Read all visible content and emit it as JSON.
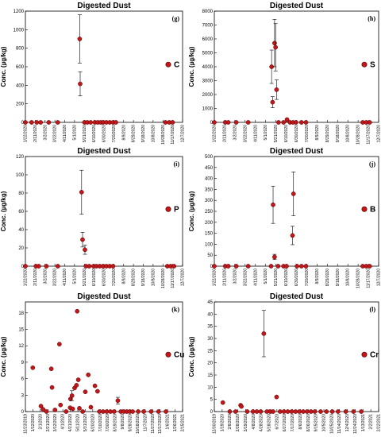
{
  "chart_data": [
    {
      "type": "scatter",
      "title": "Digested Dust",
      "panel_label": "(g)",
      "ylabel": "Conc. (µg/kg)",
      "ylim": [
        0,
        1200
      ],
      "yticks": [
        "0",
        "200",
        "400",
        "600",
        "800",
        "1000",
        "1200"
      ],
      "xticks": [
        "1/22/2020",
        "2/11/2020",
        "3/2/2020",
        "3/22/2020",
        "4/11/2020",
        "5/1/2020",
        "5/21/2020",
        "6/10/2020",
        "6/30/2020",
        "7/20/2020",
        "8/9/2020",
        "8/29/2020",
        "9/18/2020",
        "10/8/2020",
        "10/28/2020",
        "11/17/2020",
        "12/7/2020"
      ],
      "xrange_days": [
        0,
        330
      ],
      "legend": "C",
      "points": [
        {
          "x": 0,
          "y": 0
        },
        {
          "x": 13,
          "y": 0
        },
        {
          "x": 24,
          "y": 0
        },
        {
          "x": 32,
          "y": 0
        },
        {
          "x": 49,
          "y": 0
        },
        {
          "x": 68,
          "y": 0
        },
        {
          "x": 114,
          "y": 900,
          "err": 260
        },
        {
          "x": 115,
          "y": 415,
          "err": 130
        },
        {
          "x": 124,
          "y": 0
        },
        {
          "x": 130,
          "y": 0
        },
        {
          "x": 137,
          "y": 0
        },
        {
          "x": 146,
          "y": 0
        },
        {
          "x": 152,
          "y": 0
        },
        {
          "x": 158,
          "y": 0
        },
        {
          "x": 163,
          "y": 0
        },
        {
          "x": 170,
          "y": 0
        },
        {
          "x": 177,
          "y": 0
        },
        {
          "x": 184,
          "y": 0
        },
        {
          "x": 190,
          "y": 0
        },
        {
          "x": 294,
          "y": 0
        },
        {
          "x": 302,
          "y": 0
        },
        {
          "x": 309,
          "y": 0
        }
      ]
    },
    {
      "type": "scatter",
      "title": "Digested Dust",
      "panel_label": "(h)",
      "ylabel": "Conc. (µg/kg)",
      "ylim": [
        0,
        8000
      ],
      "yticks": [
        "0",
        "1000",
        "2000",
        "3000",
        "4000",
        "5000",
        "6000",
        "7000",
        "8000"
      ],
      "xticks": [
        "1/22/2020",
        "2/11/2020",
        "3/2/2020",
        "3/22/2020",
        "4/11/2020",
        "5/1/2020",
        "5/21/2020",
        "6/10/2020",
        "6/30/2020",
        "7/20/2020",
        "8/9/2020",
        "8/29/2020",
        "9/18/2020",
        "10/8/2020",
        "10/28/2020",
        "11/17/2020",
        "12/7/2020"
      ],
      "xrange_days": [
        0,
        330
      ],
      "legend": "S",
      "points": [
        {
          "x": 0,
          "y": 0
        },
        {
          "x": 22,
          "y": 0
        },
        {
          "x": 28,
          "y": 0
        },
        {
          "x": 44,
          "y": 0
        },
        {
          "x": 68,
          "y": 0
        },
        {
          "x": 115,
          "y": 4000,
          "err": 1200
        },
        {
          "x": 117,
          "y": 1450,
          "err": 400
        },
        {
          "x": 121,
          "y": 5700,
          "err": 1700
        },
        {
          "x": 123,
          "y": 5400,
          "err": 1700
        },
        {
          "x": 125,
          "y": 2350,
          "err": 700
        },
        {
          "x": 129,
          "y": 0
        },
        {
          "x": 139,
          "y": 0
        },
        {
          "x": 146,
          "y": 200,
          "err": 60
        },
        {
          "x": 152,
          "y": 0
        },
        {
          "x": 158,
          "y": 0
        },
        {
          "x": 164,
          "y": 0
        },
        {
          "x": 175,
          "y": 0
        },
        {
          "x": 184,
          "y": 0
        },
        {
          "x": 298,
          "y": 0
        },
        {
          "x": 305,
          "y": 0
        },
        {
          "x": 312,
          "y": 0
        }
      ]
    },
    {
      "type": "scatter",
      "title": "Digested Dust",
      "panel_label": "(i)",
      "ylabel": "Conc. (µg/kg)",
      "ylim": [
        0,
        120
      ],
      "yticks": [
        "0",
        "20",
        "40",
        "60",
        "80",
        "100",
        "120"
      ],
      "xticks": [
        "1/22/2020",
        "2/11/2020",
        "3/2/2020",
        "3/22/2020",
        "4/11/2020",
        "5/1/2020",
        "5/21/2020",
        "6/10/2020",
        "6/30/2020",
        "7/20/2020",
        "8/9/2020",
        "8/29/2020",
        "9/18/2020",
        "10/8/2020",
        "10/28/2020",
        "11/17/2020",
        "12/7/2020"
      ],
      "xrange_days": [
        0,
        330
      ],
      "legend": "P",
      "points": [
        {
          "x": 0,
          "y": 0
        },
        {
          "x": 22,
          "y": 0
        },
        {
          "x": 28,
          "y": 0
        },
        {
          "x": 44,
          "y": 0
        },
        {
          "x": 68,
          "y": 0
        },
        {
          "x": 118,
          "y": 81,
          "err": 24
        },
        {
          "x": 120,
          "y": 29,
          "err": 8
        },
        {
          "x": 125,
          "y": 18,
          "err": 5
        },
        {
          "x": 127,
          "y": 0
        },
        {
          "x": 134,
          "y": 0
        },
        {
          "x": 143,
          "y": 0
        },
        {
          "x": 149,
          "y": 0
        },
        {
          "x": 156,
          "y": 0
        },
        {
          "x": 163,
          "y": 0
        },
        {
          "x": 170,
          "y": 0
        },
        {
          "x": 177,
          "y": 0
        },
        {
          "x": 184,
          "y": 0
        },
        {
          "x": 298,
          "y": 0
        },
        {
          "x": 305,
          "y": 0
        },
        {
          "x": 312,
          "y": 0
        }
      ]
    },
    {
      "type": "scatter",
      "title": "Digested Dust",
      "panel_label": "(j)",
      "ylabel": "Conc. (µg/kg)",
      "ylim": [
        0,
        500
      ],
      "yticks": [
        "0",
        "50",
        "100",
        "150",
        "200",
        "250",
        "300",
        "350",
        "400",
        "450",
        "500"
      ],
      "xticks": [
        "1/22/2020",
        "2/11/2020",
        "3/2/2020",
        "3/22/2020",
        "4/11/2020",
        "5/1/2020",
        "5/21/2020",
        "6/10/2020",
        "6/30/2020",
        "7/20/2020",
        "8/9/2020",
        "8/29/2020",
        "9/18/2020",
        "10/8/2020",
        "10/28/2020",
        "11/17/2020",
        "12/7/2020"
      ],
      "xrange_days": [
        0,
        330
      ],
      "legend": "B",
      "points": [
        {
          "x": 0,
          "y": 0
        },
        {
          "x": 22,
          "y": 0
        },
        {
          "x": 28,
          "y": 0
        },
        {
          "x": 44,
          "y": 0
        },
        {
          "x": 68,
          "y": 0
        },
        {
          "x": 114,
          "y": 0
        },
        {
          "x": 118,
          "y": 280,
          "err": 85
        },
        {
          "x": 121,
          "y": 42,
          "err": 12
        },
        {
          "x": 128,
          "y": 0
        },
        {
          "x": 139,
          "y": 0
        },
        {
          "x": 145,
          "y": 0
        },
        {
          "x": 157,
          "y": 140,
          "err": 42
        },
        {
          "x": 159,
          "y": 330,
          "err": 100
        },
        {
          "x": 166,
          "y": 0
        },
        {
          "x": 175,
          "y": 0
        },
        {
          "x": 184,
          "y": 0
        },
        {
          "x": 298,
          "y": 0
        },
        {
          "x": 305,
          "y": 0
        },
        {
          "x": 312,
          "y": 0
        }
      ]
    },
    {
      "type": "scatter",
      "title": "Digested Dust",
      "panel_label": "(k)",
      "ylabel": "Conc. (µg/kg)",
      "ylim": [
        0,
        20
      ],
      "yticks": [
        "0",
        "3",
        "6",
        "9",
        "12",
        "15",
        "18"
      ],
      "ytick_values": [
        0,
        3,
        6,
        9,
        12,
        15,
        18
      ],
      "xticks": [
        "12/23/2019",
        "1/12/2020",
        "2/1/2020",
        "2/21/2020",
        "3/12/2020",
        "4/1/2020",
        "4/21/2020",
        "5/11/2020",
        "5/31/2020",
        "6/20/2020",
        "7/10/2020",
        "7/30/2020",
        "8/19/2020",
        "9/8/2020",
        "9/28/2020",
        "10/18/2020",
        "11/7/2020",
        "11/27/2020",
        "12/17/2020",
        "1/6/2021",
        "1/26/2021",
        "2/15/2021"
      ],
      "xrange_days": [
        0,
        425
      ],
      "legend": "Cu",
      "points": [
        {
          "x": 20,
          "y": 8.0
        },
        {
          "x": 42,
          "y": 1.0
        },
        {
          "x": 48,
          "y": 0.4
        },
        {
          "x": 57,
          "y": 0
        },
        {
          "x": 70,
          "y": 7.8
        },
        {
          "x": 72,
          "y": 4.4
        },
        {
          "x": 80,
          "y": 0.3
        },
        {
          "x": 92,
          "y": 12.3
        },
        {
          "x": 95,
          "y": 1.2
        },
        {
          "x": 110,
          "y": 0
        },
        {
          "x": 121,
          "y": 0.7
        },
        {
          "x": 122,
          "y": 2.3
        },
        {
          "x": 126,
          "y": 2.9,
          "err": 0.9
        },
        {
          "x": 128,
          "y": 0.5
        },
        {
          "x": 133,
          "y": 4.3
        },
        {
          "x": 138,
          "y": 4.8
        },
        {
          "x": 140,
          "y": 18.3
        },
        {
          "x": 143,
          "y": 5.8
        },
        {
          "x": 146,
          "y": 0.6
        },
        {
          "x": 155,
          "y": 0
        },
        {
          "x": 162,
          "y": 3.6
        },
        {
          "x": 170,
          "y": 6.7
        },
        {
          "x": 177,
          "y": 0.8
        },
        {
          "x": 188,
          "y": 4.7
        },
        {
          "x": 195,
          "y": 3.7
        },
        {
          "x": 200,
          "y": 0
        },
        {
          "x": 210,
          "y": 0
        },
        {
          "x": 220,
          "y": 0
        },
        {
          "x": 230,
          "y": 0
        },
        {
          "x": 240,
          "y": 0
        },
        {
          "x": 250,
          "y": 2.0,
          "err": 0.6
        },
        {
          "x": 258,
          "y": 0
        },
        {
          "x": 266,
          "y": 0
        },
        {
          "x": 274,
          "y": 0
        },
        {
          "x": 282,
          "y": 0
        },
        {
          "x": 290,
          "y": 0
        },
        {
          "x": 305,
          "y": 0
        },
        {
          "x": 320,
          "y": 0
        },
        {
          "x": 340,
          "y": 0
        },
        {
          "x": 360,
          "y": 0
        },
        {
          "x": 380,
          "y": 0
        }
      ]
    },
    {
      "type": "scatter",
      "title": "Digested Dust",
      "panel_label": "(l)",
      "ylabel": "Conc. (µg/kg)",
      "ylim": [
        0,
        45
      ],
      "yticks": [
        "0",
        "5",
        "10",
        "15",
        "20",
        "25",
        "30",
        "35",
        "40",
        "45"
      ],
      "xticks": [
        "12/30/2019",
        "1/19/2020",
        "2/8/2020",
        "2/28/2020",
        "3/19/2020",
        "4/8/2020",
        "4/28/2020",
        "5/18/2020",
        "6/7/2020",
        "6/27/2020",
        "7/17/2020",
        "8/6/2020",
        "8/26/2020",
        "9/15/2020",
        "10/5/2020",
        "10/25/2020",
        "11/14/2020",
        "12/4/2020",
        "12/24/2020",
        "1/13/2021",
        "2/2/2021",
        "2/22/2021"
      ],
      "xrange_days": [
        0,
        425
      ],
      "legend": "Cr",
      "points": [
        {
          "x": 22,
          "y": 3.7
        },
        {
          "x": 40,
          "y": 0
        },
        {
          "x": 55,
          "y": 0
        },
        {
          "x": 68,
          "y": 2.6
        },
        {
          "x": 70,
          "y": 2.1
        },
        {
          "x": 85,
          "y": 0
        },
        {
          "x": 100,
          "y": 0
        },
        {
          "x": 110,
          "y": 0
        },
        {
          "x": 120,
          "y": 0
        },
        {
          "x": 128,
          "y": 32.0,
          "err": 9.5
        },
        {
          "x": 136,
          "y": 0
        },
        {
          "x": 145,
          "y": 0
        },
        {
          "x": 152,
          "y": 0
        },
        {
          "x": 161,
          "y": 6.0
        },
        {
          "x": 170,
          "y": 0
        },
        {
          "x": 180,
          "y": 0
        },
        {
          "x": 190,
          "y": 0
        },
        {
          "x": 200,
          "y": 0
        },
        {
          "x": 210,
          "y": 0
        },
        {
          "x": 220,
          "y": 0
        },
        {
          "x": 230,
          "y": 0
        },
        {
          "x": 240,
          "y": 0
        },
        {
          "x": 250,
          "y": 0
        },
        {
          "x": 260,
          "y": 0
        },
        {
          "x": 275,
          "y": 0
        },
        {
          "x": 290,
          "y": 0
        },
        {
          "x": 305,
          "y": 0
        },
        {
          "x": 320,
          "y": 0
        },
        {
          "x": 340,
          "y": 0
        },
        {
          "x": 360,
          "y": 0
        },
        {
          "x": 380,
          "y": 0
        }
      ]
    }
  ],
  "colors": {
    "marker_fill": "#c0171b",
    "marker_stroke": "#5a0000",
    "axis": "#000000"
  }
}
